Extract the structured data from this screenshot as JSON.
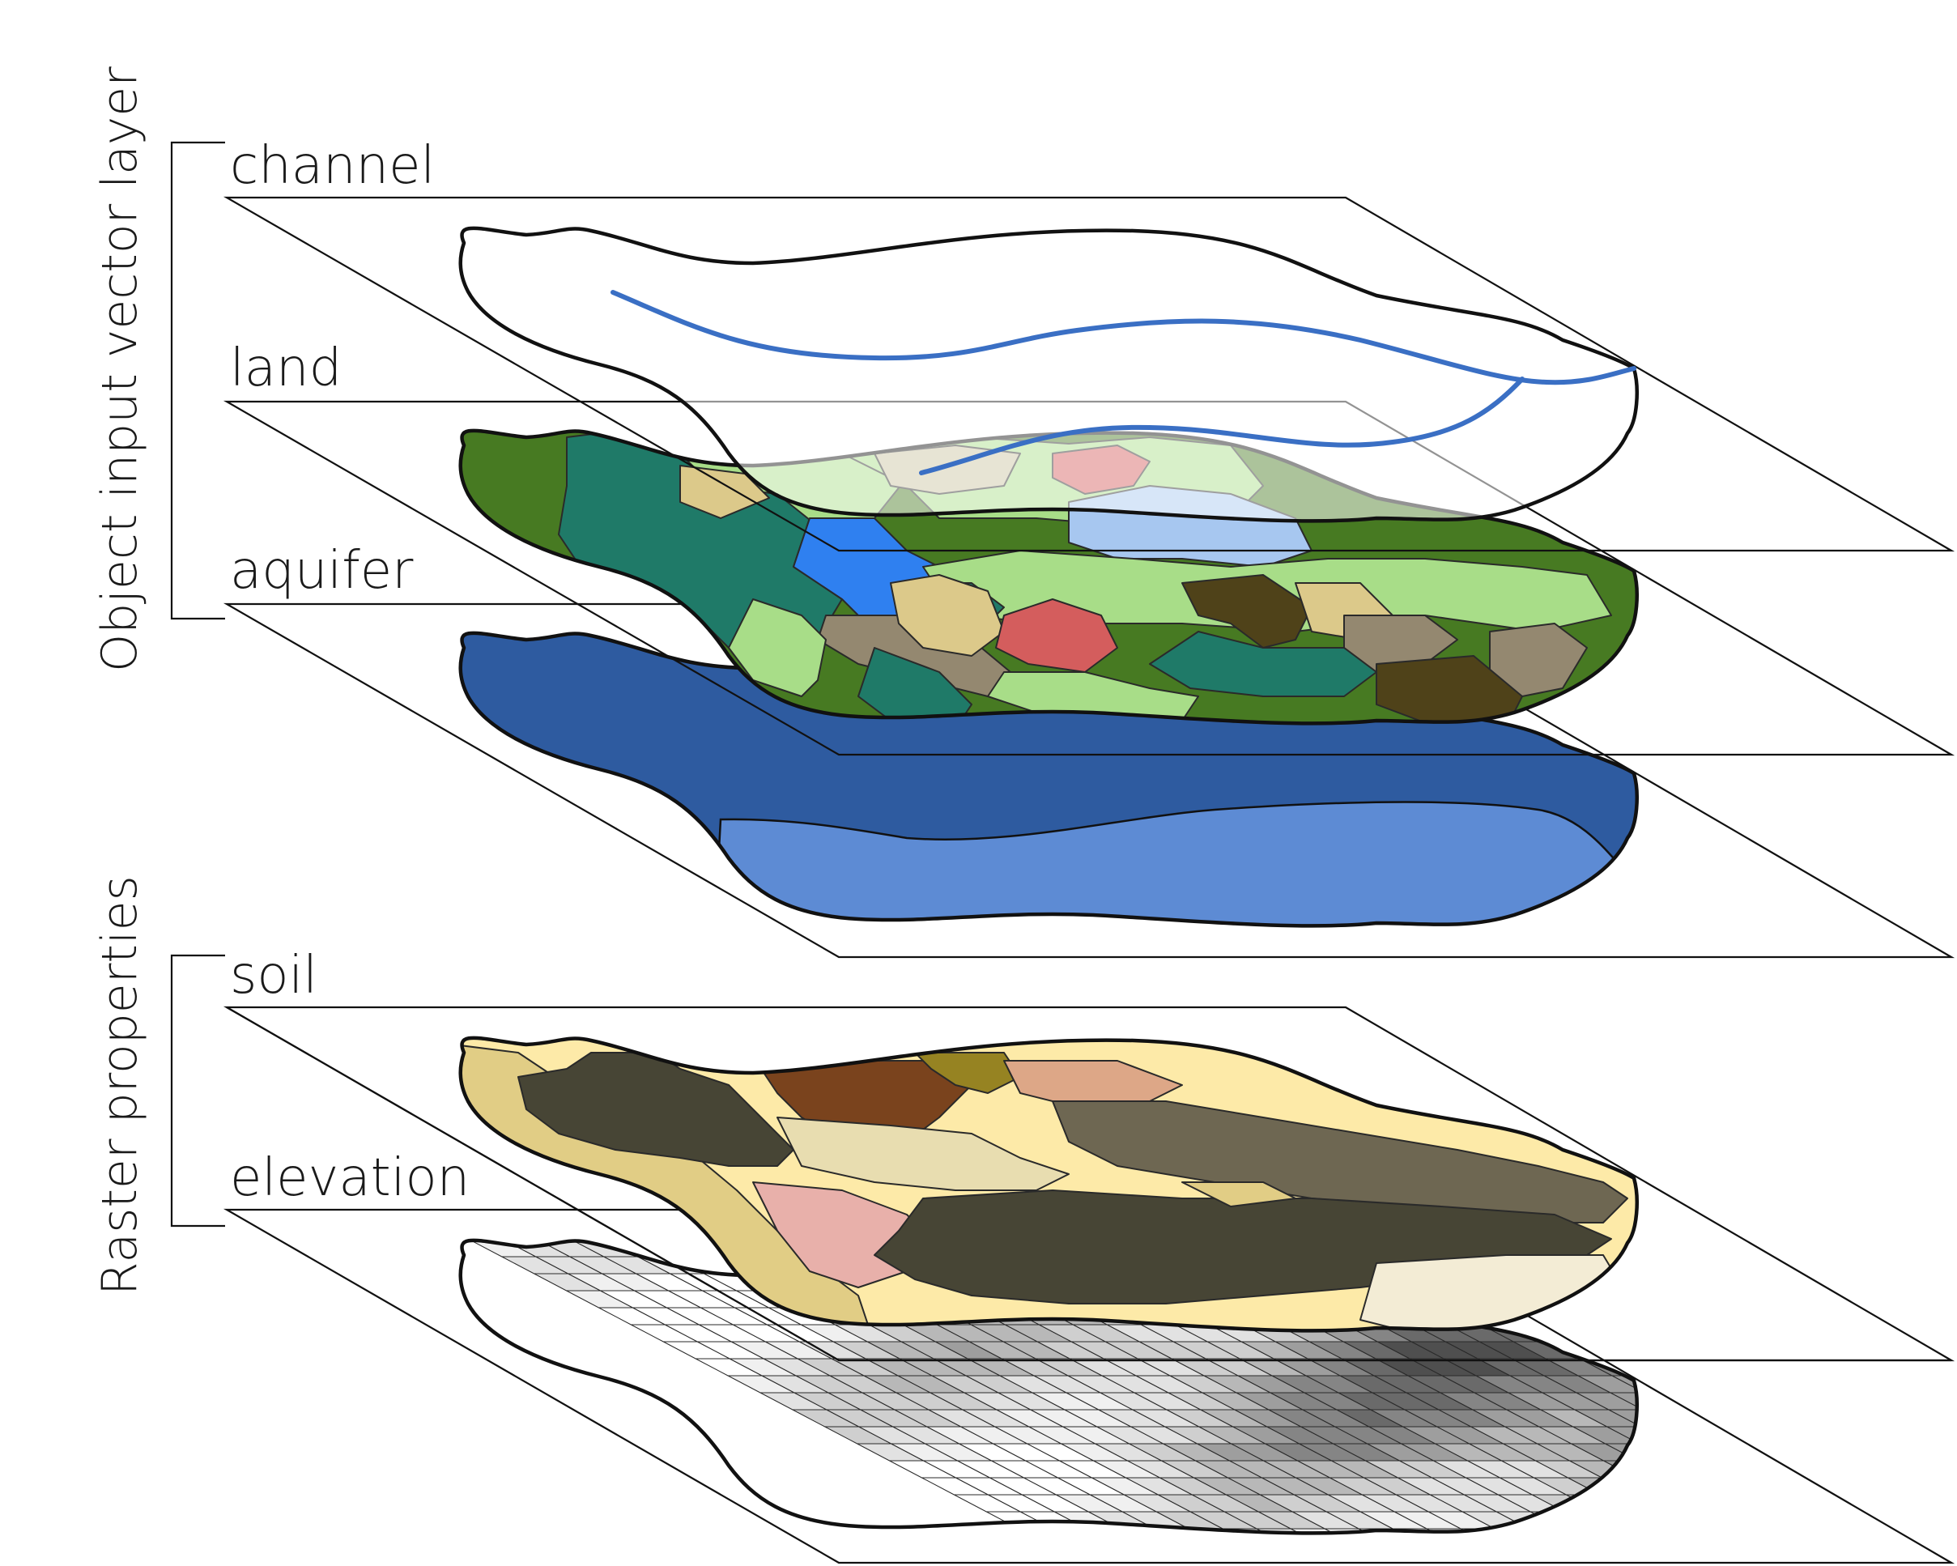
{
  "groups": {
    "vector": "Object input vector layer",
    "raster": "Raster properties"
  },
  "layers": {
    "channel": "channel",
    "land": "land",
    "aquifer": "aquifer",
    "soil": "soil",
    "elevation": "elevation"
  },
  "colors": {
    "channel_stream": "#3a6fc4",
    "land_dark_green": "#477a22",
    "land_light_green": "#a8dd88",
    "land_teal": "#1f7a68",
    "land_tan": "#dcc98a",
    "land_taupe": "#948870",
    "land_red": "#d45d5d",
    "land_water": "#2f80f0",
    "land_dark_brown": "#4f4219",
    "aquifer_dark": "#2e5ba0",
    "aquifer_light": "#5d8bd4",
    "soil_cream": "#fdeaa8",
    "soil_khaki": "#e1cd85",
    "soil_charcoal": "#474535",
    "soil_olive_gray": "#6e6752",
    "soil_pink": "#e8b0aa",
    "soil_brown": "#7a431d",
    "soil_olive": "#968322",
    "soil_peach": "#dda787",
    "soil_beige": "#e8ddb0",
    "soil_ivory": "#f3ecd5",
    "elevation_low": "#ffffff",
    "elevation_high": "#111111"
  }
}
